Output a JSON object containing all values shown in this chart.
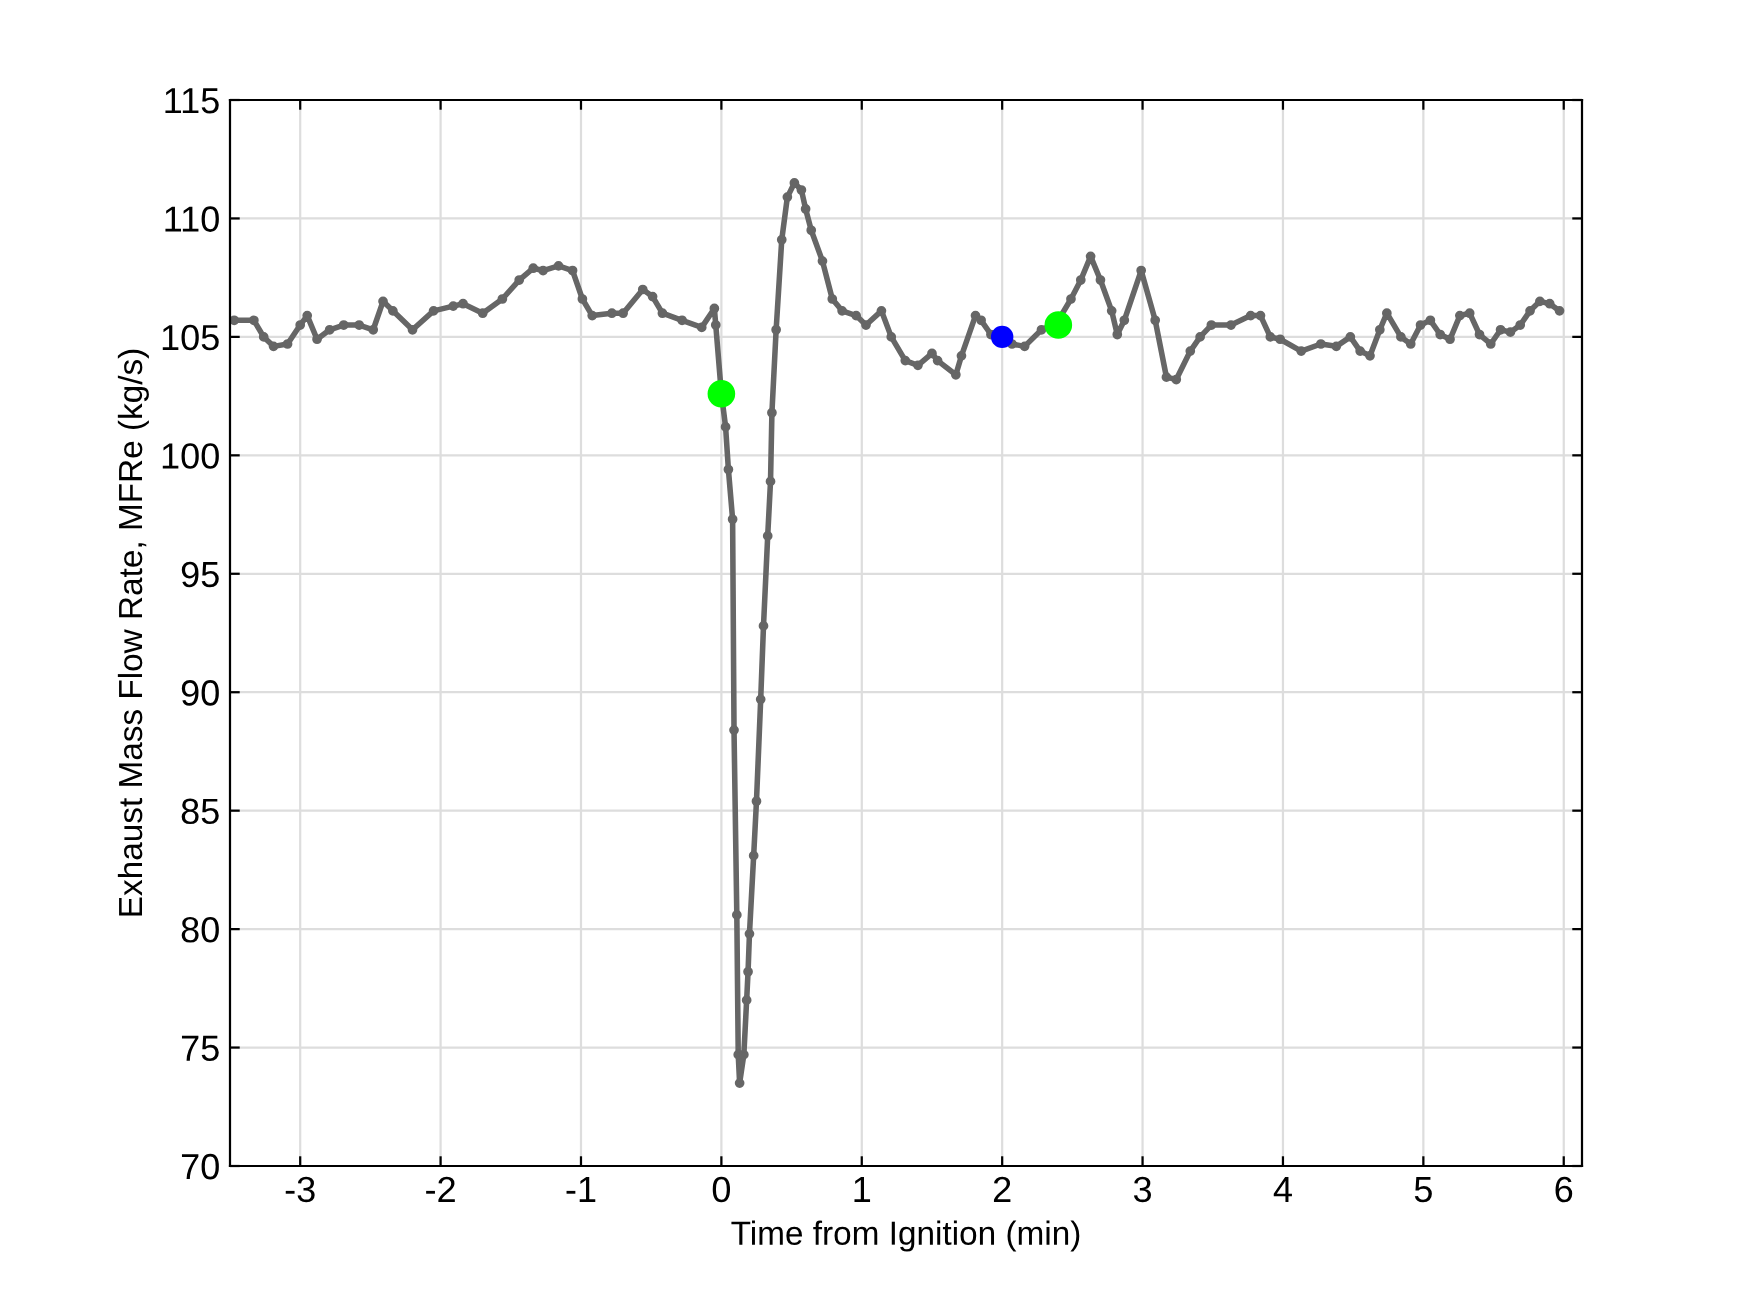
{
  "chart_data": {
    "type": "line",
    "xlabel": "Time from Ignition (min)",
    "ylabel": "Exhaust Mass Flow Rate, MFRe (kg/s)",
    "xlim": [
      -3.5,
      6.13
    ],
    "ylim": [
      70,
      115
    ],
    "xticks": [
      -3,
      -2,
      -1,
      0,
      1,
      2,
      3,
      4,
      5,
      6
    ],
    "yticks": [
      70,
      75,
      80,
      85,
      90,
      95,
      100,
      105,
      110,
      115
    ],
    "grid": true,
    "series": [
      {
        "marker": "circle",
        "line_style": "solid",
        "color": "#666666",
        "x": [
          -3.47,
          -3.33,
          -3.26,
          -3.19,
          -3.09,
          -3.0,
          -2.95,
          -2.88,
          -2.79,
          -2.69,
          -2.58,
          -2.48,
          -2.41,
          -2.34,
          -2.2,
          -2.05,
          -1.91,
          -1.84,
          -1.7,
          -1.56,
          -1.44,
          -1.34,
          -1.27,
          -1.16,
          -1.06,
          -0.99,
          -0.92,
          -0.78,
          -0.7,
          -0.56,
          -0.49,
          -0.42,
          -0.28,
          -0.14,
          -0.05,
          -0.04,
          0.0,
          0.03,
          0.05,
          0.08,
          0.09,
          0.11,
          0.12,
          0.13,
          0.16,
          0.18,
          0.19,
          0.2,
          0.23,
          0.25,
          0.28,
          0.3,
          0.33,
          0.35,
          0.36,
          0.39,
          0.43,
          0.47,
          0.52,
          0.57,
          0.6,
          0.64,
          0.72,
          0.79,
          0.86,
          0.96,
          1.03,
          1.14,
          1.21,
          1.31,
          1.4,
          1.5,
          1.54,
          1.67,
          1.71,
          1.81,
          1.85,
          1.92,
          2.0,
          2.07,
          2.16,
          2.28,
          2.39,
          2.49,
          2.56,
          2.63,
          2.7,
          2.78,
          2.82,
          2.87,
          2.99,
          3.09,
          3.17,
          3.24,
          3.34,
          3.41,
          3.49,
          3.63,
          3.77,
          3.84,
          3.91,
          3.98,
          4.13,
          4.27,
          4.38,
          4.48,
          4.55,
          4.62,
          4.69,
          4.74,
          4.84,
          4.91,
          4.98,
          5.05,
          5.12,
          5.19,
          5.26,
          5.33,
          5.4,
          5.48,
          5.55,
          5.62,
          5.69,
          5.76,
          5.83,
          5.9,
          5.97
        ],
        "values": [
          105.7,
          105.7,
          105.0,
          104.6,
          104.7,
          105.5,
          105.9,
          104.9,
          105.3,
          105.5,
          105.5,
          105.3,
          106.5,
          106.1,
          105.3,
          106.1,
          106.3,
          106.4,
          106.0,
          106.6,
          107.4,
          107.9,
          107.8,
          108.0,
          107.8,
          106.6,
          105.9,
          106.0,
          106.0,
          107.0,
          106.7,
          106.0,
          105.7,
          105.4,
          106.2,
          105.5,
          102.6,
          101.2,
          99.4,
          97.3,
          88.4,
          80.6,
          74.7,
          73.5,
          74.7,
          77.0,
          78.2,
          79.8,
          83.1,
          85.4,
          89.7,
          92.8,
          96.6,
          98.9,
          101.8,
          105.3,
          109.1,
          110.9,
          111.5,
          111.2,
          110.4,
          109.5,
          108.2,
          106.6,
          106.1,
          105.9,
          105.5,
          106.1,
          105.0,
          104.0,
          103.8,
          104.3,
          104.0,
          103.4,
          104.2,
          105.9,
          105.7,
          105.1,
          105.0,
          104.7,
          104.6,
          105.3,
          105.6,
          106.6,
          107.4,
          108.4,
          107.4,
          106.1,
          105.1,
          105.7,
          107.8,
          105.7,
          103.3,
          103.2,
          104.4,
          105.0,
          105.5,
          105.5,
          105.9,
          105.9,
          105.0,
          104.9,
          104.4,
          104.7,
          104.6,
          105.0,
          104.4,
          104.2,
          105.3,
          106.0,
          105.0,
          104.7,
          105.5,
          105.7,
          105.1,
          104.9,
          105.9,
          106.0,
          105.1,
          104.7,
          105.3,
          105.2,
          105.5,
          106.1,
          106.5,
          106.4,
          106.1
        ]
      },
      {
        "type": "scatter",
        "color": "#00ff00",
        "x": [
          0.0,
          2.4
        ],
        "values": [
          102.6,
          105.5
        ]
      },
      {
        "type": "scatter",
        "color": "#0000ff",
        "x": [
          2.0
        ],
        "values": [
          105.0
        ]
      }
    ]
  }
}
